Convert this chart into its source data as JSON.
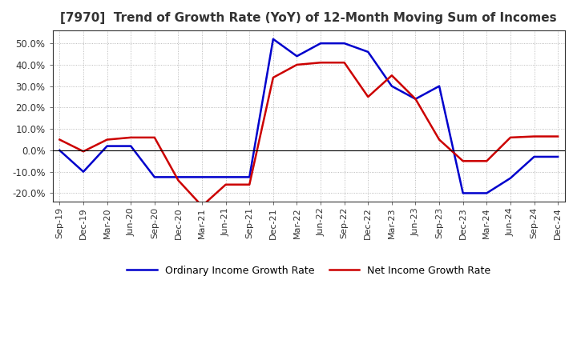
{
  "title": "[7970]  Trend of Growth Rate (YoY) of 12-Month Moving Sum of Incomes",
  "title_fontsize": 11,
  "background_color": "#ffffff",
  "grid_color": "#aaaaaa",
  "ylim": [
    -24,
    56
  ],
  "yticks": [
    -20,
    -10,
    0,
    10,
    20,
    30,
    40,
    50
  ],
  "ytick_labels": [
    "-20.0%",
    "-10.0%",
    "0.0%",
    "10.0%",
    "20.0%",
    "30.0%",
    "40.0%",
    "50.0%"
  ],
  "x_labels": [
    "Sep-19",
    "Dec-19",
    "Mar-20",
    "Jun-20",
    "Sep-20",
    "Dec-20",
    "Mar-21",
    "Jun-21",
    "Sep-21",
    "Dec-21",
    "Mar-22",
    "Jun-22",
    "Sep-22",
    "Dec-22",
    "Mar-23",
    "Jun-23",
    "Sep-23",
    "Dec-23",
    "Mar-24",
    "Jun-24",
    "Sep-24",
    "Dec-24"
  ],
  "ordinary_income": [
    0.0,
    -10.0,
    2.0,
    2.0,
    -12.5,
    -12.5,
    -12.5,
    -12.5,
    -12.5,
    52.0,
    44.0,
    50.0,
    50.0,
    46.0,
    30.0,
    24.0,
    30.0,
    -20.0,
    -20.0,
    -13.0,
    -3.0,
    -3.0
  ],
  "net_income": [
    5.0,
    -0.5,
    5.0,
    6.0,
    6.0,
    -14.0,
    -26.0,
    -16.0,
    -16.0,
    34.0,
    40.0,
    41.0,
    41.0,
    25.0,
    35.0,
    24.0,
    5.0,
    -5.0,
    -5.0,
    6.0,
    6.5,
    6.5
  ],
  "ordinary_color": "#0000cc",
  "net_color": "#cc0000",
  "line_width": 1.8,
  "legend_ordinary": "Ordinary Income Growth Rate",
  "legend_net": "Net Income Growth Rate",
  "figsize": [
    7.2,
    4.4
  ],
  "dpi": 100
}
